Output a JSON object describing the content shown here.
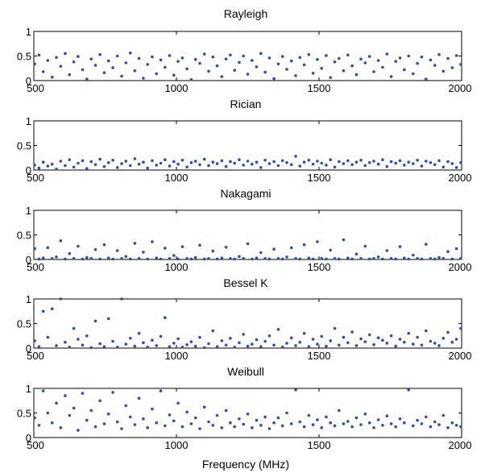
{
  "chart_data": [
    {
      "type": "scatter",
      "title": "Rayleigh",
      "xlabel": "",
      "ylabel": "",
      "xlim": [
        500,
        2000
      ],
      "ylim": [
        0,
        1
      ],
      "xticks": [
        500,
        1000,
        1500,
        2000
      ],
      "yticks": [
        0,
        0.5,
        1
      ],
      "grid": false,
      "color": "#2d4fa8",
      "x": [
        503,
        518,
        533,
        549,
        564,
        579,
        594,
        610,
        625,
        640,
        655,
        671,
        686,
        701,
        716,
        732,
        747,
        762,
        777,
        793,
        808,
        823,
        838,
        854,
        869,
        884,
        899,
        915,
        930,
        945,
        960,
        976,
        991,
        1006,
        1021,
        1037,
        1052,
        1067,
        1082,
        1098,
        1113,
        1128,
        1143,
        1159,
        1174,
        1189,
        1204,
        1220,
        1235,
        1250,
        1265,
        1281,
        1296,
        1311,
        1326,
        1342,
        1357,
        1372,
        1387,
        1403,
        1418,
        1433,
        1448,
        1464,
        1479,
        1494,
        1509,
        1525,
        1540,
        1555,
        1570,
        1586,
        1601,
        1616,
        1631,
        1647,
        1662,
        1677,
        1692,
        1708,
        1723,
        1738,
        1753,
        1769,
        1784,
        1799,
        1814,
        1830,
        1845,
        1860,
        1875,
        1891,
        1906,
        1921,
        1936,
        1952,
        1967,
        1982,
        1997
      ],
      "y": [
        0.34,
        0.52,
        0.18,
        0.41,
        0.07,
        0.47,
        0.29,
        0.55,
        0.12,
        0.38,
        0.49,
        0.22,
        0.03,
        0.44,
        0.31,
        0.53,
        0.16,
        0.4,
        0.26,
        0.5,
        0.09,
        0.36,
        0.56,
        0.2,
        0.45,
        0.05,
        0.33,
        0.48,
        0.14,
        0.42,
        0.27,
        0.51,
        0.11,
        0.39,
        0.46,
        0.24,
        0.02,
        0.43,
        0.35,
        0.54,
        0.19,
        0.48,
        0.3,
        0.08,
        0.44,
        0.52,
        0.21,
        0.37,
        0.5,
        0.13,
        0.41,
        0.28,
        0.55,
        0.17,
        0.46,
        0.04,
        0.34,
        0.49,
        0.23,
        0.4,
        0.1,
        0.47,
        0.32,
        0.53,
        0.15,
        0.43,
        0.25,
        0.51,
        0.06,
        0.38,
        0.45,
        0.2,
        0.52,
        0.3,
        0.12,
        0.44,
        0.36,
        0.49,
        0.18,
        0.41,
        0.27,
        0.54,
        0.08,
        0.39,
        0.46,
        0.22,
        0.5,
        0.14,
        0.35,
        0.48,
        0.03,
        0.42,
        0.31,
        0.53,
        0.19,
        0.45,
        0.26,
        0.51,
        0.33
      ]
    },
    {
      "type": "scatter",
      "title": "Rician",
      "xlabel": "",
      "ylabel": "",
      "xlim": [
        500,
        2000
      ],
      "ylim": [
        0,
        1
      ],
      "xticks": [
        500,
        1000,
        1500,
        2000
      ],
      "yticks": [
        0,
        0.5,
        1
      ],
      "grid": false,
      "color": "#2d4fa8",
      "x": [
        503,
        518,
        533,
        549,
        564,
        579,
        594,
        610,
        625,
        640,
        655,
        671,
        686,
        701,
        716,
        732,
        747,
        762,
        777,
        793,
        808,
        823,
        838,
        854,
        869,
        884,
        899,
        915,
        930,
        945,
        960,
        976,
        991,
        1006,
        1021,
        1037,
        1052,
        1067,
        1082,
        1098,
        1113,
        1128,
        1143,
        1159,
        1174,
        1189,
        1204,
        1220,
        1235,
        1250,
        1265,
        1281,
        1296,
        1311,
        1326,
        1342,
        1357,
        1372,
        1387,
        1403,
        1418,
        1433,
        1448,
        1464,
        1479,
        1494,
        1509,
        1525,
        1540,
        1555,
        1570,
        1586,
        1601,
        1616,
        1631,
        1647,
        1662,
        1677,
        1692,
        1708,
        1723,
        1738,
        1753,
        1769,
        1784,
        1799,
        1814,
        1830,
        1845,
        1860,
        1875,
        1891,
        1906,
        1921,
        1936,
        1952,
        1967,
        1982,
        1997
      ],
      "y": [
        0.1,
        0.04,
        0.16,
        0.08,
        0.12,
        0.02,
        0.18,
        0.09,
        0.21,
        0.06,
        0.14,
        0.19,
        0.03,
        0.17,
        0.11,
        0.22,
        0.07,
        0.15,
        0.2,
        0.05,
        0.13,
        0.18,
        0.09,
        0.23,
        0.12,
        0.16,
        0.04,
        0.19,
        0.1,
        0.14,
        0.21,
        0.08,
        0.17,
        0.12,
        0.2,
        0.06,
        0.15,
        0.18,
        0.11,
        0.22,
        0.09,
        0.16,
        0.13,
        0.19,
        0.07,
        0.17,
        0.14,
        0.21,
        0.1,
        0.18,
        0.12,
        0.16,
        0.05,
        0.2,
        0.13,
        0.17,
        0.09,
        0.19,
        0.15,
        0.11,
        0.28,
        0.08,
        0.16,
        0.2,
        0.12,
        0.18,
        0.14,
        0.1,
        0.21,
        0.06,
        0.17,
        0.13,
        0.19,
        0.11,
        0.16,
        0.2,
        0.09,
        0.15,
        0.18,
        0.12,
        0.21,
        0.07,
        0.17,
        0.14,
        0.19,
        0.1,
        0.16,
        0.13,
        0.2,
        0.08,
        0.18,
        0.15,
        0.11,
        0.19,
        0.06,
        0.17,
        0.13,
        0.05,
        0.15
      ]
    },
    {
      "type": "scatter",
      "title": "Nakagami",
      "xlabel": "",
      "ylabel": "",
      "xlim": [
        500,
        2000
      ],
      "ylim": [
        0,
        1
      ],
      "xticks": [
        500,
        1000,
        1500,
        2000
      ],
      "yticks": [
        0,
        0.5,
        1
      ],
      "grid": false,
      "color": "#2d4fa8",
      "x": [
        503,
        518,
        533,
        549,
        564,
        579,
        594,
        610,
        625,
        640,
        655,
        671,
        686,
        701,
        716,
        732,
        747,
        762,
        777,
        793,
        808,
        823,
        838,
        854,
        869,
        884,
        899,
        915,
        930,
        945,
        960,
        976,
        991,
        1006,
        1021,
        1037,
        1052,
        1067,
        1082,
        1098,
        1113,
        1128,
        1143,
        1159,
        1174,
        1189,
        1204,
        1220,
        1235,
        1250,
        1265,
        1281,
        1296,
        1311,
        1326,
        1342,
        1357,
        1372,
        1387,
        1403,
        1418,
        1433,
        1448,
        1464,
        1479,
        1494,
        1509,
        1525,
        1540,
        1555,
        1570,
        1586,
        1601,
        1616,
        1631,
        1647,
        1662,
        1677,
        1692,
        1708,
        1723,
        1738,
        1753,
        1769,
        1784,
        1799,
        1814,
        1830,
        1845,
        1860,
        1875,
        1891,
        1906,
        1921,
        1936,
        1952,
        1967,
        1982,
        1997
      ],
      "y": [
        0.22,
        0.01,
        0.03,
        0.24,
        0.02,
        0.05,
        0.38,
        0.01,
        0.12,
        0.02,
        0.27,
        0.01,
        0.04,
        0.02,
        0.2,
        0.01,
        0.3,
        0.03,
        0.01,
        0.18,
        0.02,
        0.06,
        0.01,
        0.33,
        0.02,
        0.15,
        0.01,
        0.36,
        0.03,
        0.01,
        0.23,
        0.02,
        0.08,
        0.01,
        0.26,
        0.02,
        0.01,
        0.04,
        0.29,
        0.01,
        0.02,
        0.17,
        0.01,
        0.03,
        0.25,
        0.02,
        0.01,
        0.06,
        0.02,
        0.32,
        0.01,
        0.03,
        0.14,
        0.02,
        0.01,
        0.21,
        0.02,
        0.01,
        0.05,
        0.24,
        0.02,
        0.01,
        0.3,
        0.03,
        0.01,
        0.36,
        0.02,
        0.01,
        0.19,
        0.02,
        0.01,
        0.4,
        0.03,
        0.01,
        0.11,
        0.02,
        0.27,
        0.01,
        0.02,
        0.05,
        0.01,
        0.18,
        0.02,
        0.01,
        0.26,
        0.03,
        0.01,
        0.09,
        0.02,
        0.01,
        0.31,
        0.02,
        0.01,
        0.04,
        0.02,
        0.16,
        0.01,
        0.22,
        0.02
      ]
    },
    {
      "type": "scatter",
      "title": "Bessel K",
      "xlabel": "",
      "ylabel": "",
      "xlim": [
        500,
        2000
      ],
      "ylim": [
        0,
        1
      ],
      "xticks": [
        500,
        1000,
        1500,
        2000
      ],
      "yticks": [
        0,
        0.5,
        1
      ],
      "grid": false,
      "color": "#2d4fa8",
      "x": [
        503,
        518,
        533,
        549,
        564,
        579,
        594,
        610,
        625,
        640,
        655,
        671,
        686,
        701,
        716,
        732,
        747,
        762,
        777,
        793,
        808,
        823,
        838,
        854,
        869,
        884,
        899,
        915,
        930,
        945,
        960,
        976,
        991,
        1006,
        1021,
        1037,
        1052,
        1067,
        1082,
        1098,
        1113,
        1128,
        1143,
        1159,
        1174,
        1189,
        1204,
        1220,
        1235,
        1250,
        1265,
        1281,
        1296,
        1311,
        1326,
        1342,
        1357,
        1372,
        1387,
        1403,
        1418,
        1433,
        1448,
        1464,
        1479,
        1494,
        1509,
        1525,
        1540,
        1555,
        1570,
        1586,
        1601,
        1616,
        1631,
        1647,
        1662,
        1677,
        1692,
        1708,
        1723,
        1738,
        1753,
        1769,
        1784,
        1799,
        1814,
        1830,
        1845,
        1860,
        1875,
        1891,
        1906,
        1921,
        1936,
        1952,
        1967,
        1982,
        1997
      ],
      "y": [
        0.15,
        0.03,
        0.75,
        0.22,
        0.8,
        0.05,
        1.0,
        0.12,
        0.02,
        0.4,
        0.18,
        0.06,
        0.25,
        0.01,
        0.55,
        0.09,
        0.03,
        0.6,
        0.14,
        0.02,
        1.0,
        0.08,
        0.2,
        0.04,
        0.3,
        0.11,
        0.02,
        0.16,
        0.05,
        0.24,
        0.62,
        0.03,
        0.1,
        0.19,
        0.02,
        0.07,
        0.13,
        0.04,
        0.22,
        0.01,
        0.09,
        0.35,
        0.03,
        0.15,
        0.06,
        0.2,
        0.02,
        0.11,
        0.28,
        0.04,
        0.08,
        0.17,
        0.03,
        0.14,
        0.25,
        0.06,
        0.38,
        0.02,
        0.1,
        0.21,
        0.05,
        0.12,
        0.3,
        0.03,
        0.18,
        0.08,
        0.24,
        0.04,
        0.15,
        0.4,
        0.06,
        0.22,
        0.11,
        0.33,
        0.05,
        0.19,
        0.13,
        0.27,
        0.07,
        0.21,
        0.16,
        0.1,
        0.25,
        0.04,
        0.18,
        0.12,
        0.3,
        0.08,
        0.22,
        0.06,
        0.35,
        0.14,
        0.1,
        0.05,
        0.2,
        0.32,
        0.12,
        0.18,
        0.4
      ]
    },
    {
      "type": "scatter",
      "title": "Weibull",
      "xlabel": "Frequency (MHz)",
      "ylabel": "",
      "xlim": [
        500,
        2000
      ],
      "ylim": [
        0,
        1
      ],
      "xticks": [
        500,
        1000,
        1500,
        2000
      ],
      "yticks": [
        0,
        0.5,
        1
      ],
      "grid": false,
      "color": "#2d4fa8",
      "x": [
        503,
        518,
        533,
        549,
        564,
        579,
        594,
        610,
        625,
        640,
        655,
        671,
        686,
        701,
        716,
        732,
        747,
        762,
        777,
        793,
        808,
        823,
        838,
        854,
        869,
        884,
        899,
        915,
        930,
        945,
        960,
        976,
        991,
        1006,
        1021,
        1037,
        1052,
        1067,
        1082,
        1098,
        1113,
        1128,
        1143,
        1159,
        1174,
        1189,
        1204,
        1220,
        1235,
        1250,
        1265,
        1281,
        1296,
        1311,
        1326,
        1342,
        1357,
        1372,
        1387,
        1403,
        1418,
        1433,
        1448,
        1464,
        1479,
        1494,
        1509,
        1525,
        1540,
        1555,
        1570,
        1586,
        1601,
        1616,
        1631,
        1647,
        1662,
        1677,
        1692,
        1708,
        1723,
        1738,
        1753,
        1769,
        1784,
        1799,
        1814,
        1830,
        1845,
        1860,
        1875,
        1891,
        1906,
        1921,
        1936,
        1952,
        1967,
        1982,
        1997
      ],
      "y": [
        0.4,
        0.25,
        0.95,
        0.5,
        0.3,
        0.7,
        0.2,
        0.85,
        0.45,
        0.6,
        0.15,
        0.9,
        0.35,
        0.55,
        0.22,
        0.75,
        0.28,
        0.48,
        0.92,
        0.32,
        0.18,
        0.65,
        0.42,
        0.26,
        0.8,
        0.38,
        0.2,
        0.58,
        0.3,
        0.95,
        0.24,
        0.46,
        0.34,
        0.7,
        0.22,
        0.52,
        0.28,
        0.4,
        0.18,
        0.62,
        0.32,
        0.25,
        0.45,
        0.2,
        0.55,
        0.3,
        0.22,
        0.38,
        0.27,
        0.48,
        0.2,
        0.35,
        0.25,
        0.42,
        0.18,
        0.3,
        0.4,
        0.24,
        0.5,
        0.28,
        0.97,
        0.32,
        0.22,
        0.45,
        0.26,
        0.36,
        0.2,
        0.42,
        0.3,
        0.24,
        0.55,
        0.28,
        0.33,
        0.22,
        0.4,
        0.26,
        0.48,
        0.3,
        0.2,
        0.36,
        0.25,
        0.44,
        0.28,
        0.22,
        0.38,
        0.3,
        0.97,
        0.24,
        0.35,
        0.28,
        0.42,
        0.22,
        0.32,
        0.26,
        0.45,
        0.2,
        0.3,
        0.25,
        0.22
      ]
    }
  ]
}
